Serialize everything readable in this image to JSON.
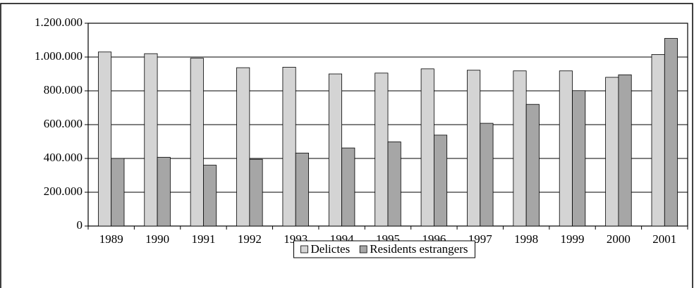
{
  "chart_data": {
    "type": "bar",
    "categories": [
      "1989",
      "1990",
      "1991",
      "1992",
      "1993",
      "1994",
      "1995",
      "1996",
      "1997",
      "1998",
      "1999",
      "2000",
      "2001"
    ],
    "series": [
      {
        "name": "Delictes",
        "color": "#d4d4d4",
        "values": [
          1030000,
          1020000,
          993000,
          937000,
          940000,
          900000,
          905000,
          930000,
          922000,
          918000,
          918000,
          880000,
          1015000
        ]
      },
      {
        "name": "Residents estrangers",
        "color": "#a6a6a6",
        "values": [
          400000,
          407000,
          360000,
          395000,
          432000,
          462000,
          498000,
          538000,
          608000,
          720000,
          801000,
          895000,
          1110000
        ]
      }
    ],
    "ylim": [
      0,
      1200000
    ],
    "yticks": [
      0,
      {
        "value": 200000,
        "label": "200.000"
      },
      {
        "value": 400000,
        "label": "400.000"
      },
      {
        "value": 600000,
        "label": "600.000"
      },
      {
        "value": 800000,
        "label": "800.000"
      },
      {
        "value": 1000000,
        "label": "1.000.000"
      },
      {
        "value": 1200000,
        "label": "1.200.000"
      }
    ],
    "grid": true,
    "legend": "bottom"
  }
}
